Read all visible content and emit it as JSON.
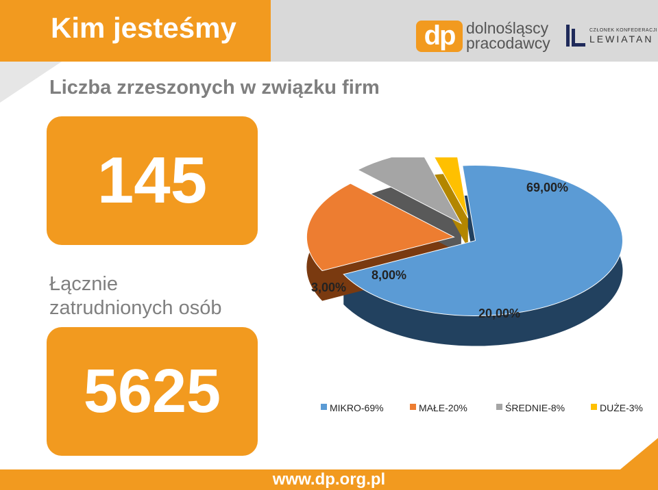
{
  "header": {
    "title": "Kim jesteśmy",
    "logo_dp_mark": "dp",
    "logo_line1": "dolnośląscy",
    "logo_line2": "pracodawcy",
    "lewiatan_small": "CZŁONEK KONFEDERACJI",
    "lewiatan_big": "LEWIATAN"
  },
  "main": {
    "subtitle": "Liczba zrzeszonych w związku firm",
    "firms_count": "145",
    "employees_label_line1": "Łącznie",
    "employees_label_line2": "zatrudnionych osób",
    "employees_count": "5625"
  },
  "chart_data": {
    "type": "pie",
    "style": "3d-exploded",
    "categories": [
      "MIKRO",
      "MAŁE",
      "ŚREDNIE",
      "DUŻE"
    ],
    "values": [
      69,
      20,
      8,
      3
    ],
    "data_labels": [
      "69,00%",
      "20,00%",
      "8,00%",
      "3,00%"
    ],
    "legend": [
      "MIKRO-69%",
      "MAŁE-20%",
      "ŚREDNIE-8%",
      "DUŻE-3%"
    ],
    "legend_position": "bottom",
    "colors": [
      "#5b9bd5",
      "#ed7d31",
      "#a5a5a5",
      "#ffc000"
    ],
    "side_colors": [
      "#22415f",
      "#7a3a10",
      "#595959",
      "#b38600"
    ]
  },
  "footer": {
    "url": "www.dp.org.pl"
  },
  "colors": {
    "accent": "#f29a1f",
    "header_gray": "#d9d9d9",
    "text_gray": "#7f7f7f"
  }
}
